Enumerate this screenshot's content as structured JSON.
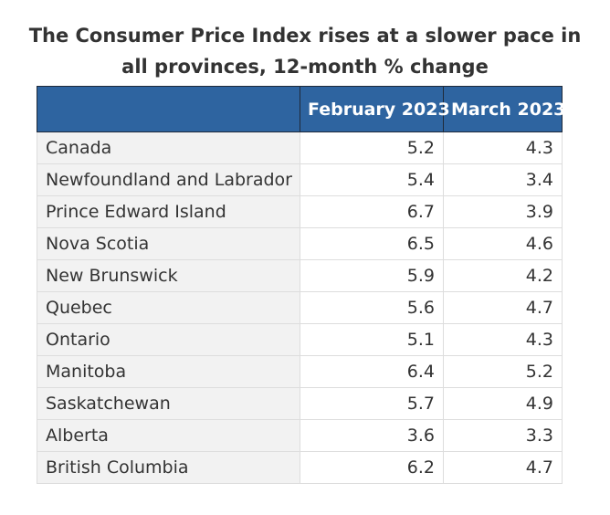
{
  "title_line1": "The Consumer Price Index rises at a slower pace in",
  "title_line2": "all provinces, 12-month % change",
  "colors": {
    "header_bg": "#2e64a0",
    "header_text": "#ffffff",
    "first_column_bg": "#f2f2f2",
    "text": "#333333"
  },
  "chart_data": {
    "type": "table",
    "title": "The Consumer Price Index rises at a slower pace in all provinces, 12-month % change",
    "columns": [
      "",
      "February 2023",
      "March 2023"
    ],
    "rows": [
      {
        "region": "Canada",
        "feb": "5.2",
        "mar": "4.3"
      },
      {
        "region": "Newfoundland and Labrador",
        "feb": "5.4",
        "mar": "3.4"
      },
      {
        "region": "Prince Edward Island",
        "feb": "6.7",
        "mar": "3.9"
      },
      {
        "region": "Nova Scotia",
        "feb": "6.5",
        "mar": "4.6"
      },
      {
        "region": "New Brunswick",
        "feb": "5.9",
        "mar": "4.2"
      },
      {
        "region": "Quebec",
        "feb": "5.6",
        "mar": "4.7"
      },
      {
        "region": "Ontario",
        "feb": "5.1",
        "mar": "4.3"
      },
      {
        "region": "Manitoba",
        "feb": "6.4",
        "mar": "5.2"
      },
      {
        "region": "Saskatchewan",
        "feb": "5.7",
        "mar": "4.9"
      },
      {
        "region": "Alberta",
        "feb": "3.6",
        "mar": "3.3"
      },
      {
        "region": "British Columbia",
        "feb": "6.2",
        "mar": "4.7"
      }
    ]
  }
}
